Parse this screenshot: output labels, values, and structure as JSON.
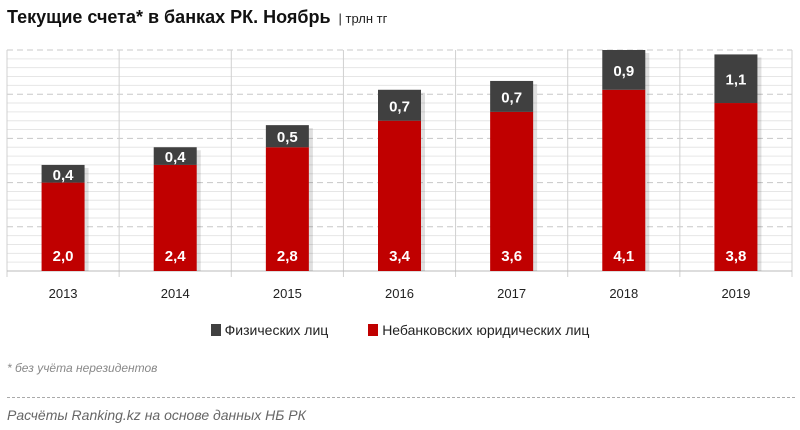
{
  "chart_data": {
    "type": "bar",
    "stacked": true,
    "title": "Текущие счета* в банках РК. Ноябрь",
    "unit": "| трлн тг",
    "categories": [
      "2013",
      "2014",
      "2015",
      "2016",
      "2017",
      "2018",
      "2019"
    ],
    "series": [
      {
        "name": "Небанковских юридических лиц",
        "color": "#c00000",
        "values": [
          2.0,
          2.4,
          2.8,
          3.4,
          3.6,
          4.1,
          3.8
        ],
        "labels": [
          "2,0",
          "2,4",
          "2,8",
          "3,4",
          "3,6",
          "4,1",
          "3,8"
        ]
      },
      {
        "name": "Физических лиц",
        "color": "#404040",
        "values": [
          0.4,
          0.4,
          0.5,
          0.7,
          0.7,
          0.9,
          1.1
        ],
        "labels": [
          "0,4",
          "0,4",
          "0,5",
          "0,7",
          "0,7",
          "0,9",
          "1,1"
        ]
      }
    ],
    "ylim": [
      0,
      5
    ],
    "grid": true,
    "legend": "bottom"
  },
  "footnote": "* без учёта нерезидентов",
  "source": "Расчёты Ranking.kz на основе данных НБ РК"
}
